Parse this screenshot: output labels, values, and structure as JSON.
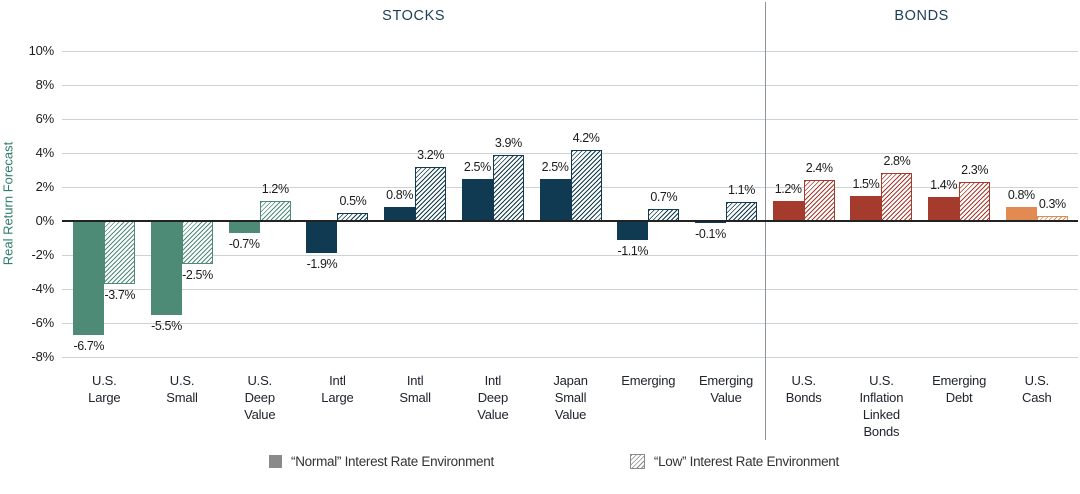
{
  "chart_data": {
    "type": "bar",
    "ylabel": "Real Return Forecast",
    "ylim": [
      -8,
      10
    ],
    "ytick_step": 2,
    "grid": true,
    "legend_position": "bottom",
    "sections": [
      {
        "label": "STOCKS",
        "from": 0,
        "to": 8
      },
      {
        "label": "BONDS",
        "from": 9,
        "to": 12
      }
    ],
    "series": [
      {
        "name": "“Normal” Interest Rate Environment",
        "key": "normal",
        "style": "solid"
      },
      {
        "name": "“Low” Interest Rate Environment",
        "key": "low",
        "style": "hatched"
      }
    ],
    "categories": [
      {
        "label": [
          "U.S.",
          "Large"
        ],
        "normal": -6.7,
        "low": -3.7,
        "color": "green"
      },
      {
        "label": [
          "U.S.",
          "Small"
        ],
        "normal": -5.5,
        "low": -2.5,
        "color": "green"
      },
      {
        "label": [
          "U.S.",
          "Deep",
          "Value"
        ],
        "normal": -0.7,
        "low": 1.2,
        "color": "green"
      },
      {
        "label": [
          "Intl",
          "Large"
        ],
        "normal": -1.9,
        "low": 0.5,
        "color": "navy"
      },
      {
        "label": [
          "Intl",
          "Small"
        ],
        "normal": 0.8,
        "low": 3.2,
        "color": "navy"
      },
      {
        "label": [
          "Intl",
          "Deep",
          "Value"
        ],
        "normal": 2.5,
        "low": 3.9,
        "color": "navy"
      },
      {
        "label": [
          "Japan",
          "Small",
          "Value"
        ],
        "normal": 2.5,
        "low": 4.2,
        "color": "navy"
      },
      {
        "label": [
          "Emerging"
        ],
        "normal": -1.1,
        "low": 0.7,
        "color": "navy"
      },
      {
        "label": [
          "Emerging",
          "Value"
        ],
        "normal": -0.1,
        "low": 1.1,
        "color": "navy"
      },
      {
        "label": [
          "U.S.",
          "Bonds"
        ],
        "normal": 1.2,
        "low": 2.4,
        "color": "red"
      },
      {
        "label": [
          "U.S.",
          "Inflation",
          "Linked",
          "Bonds"
        ],
        "normal": 1.5,
        "low": 2.8,
        "color": "red"
      },
      {
        "label": [
          "Emerging",
          "Debt"
        ],
        "normal": 1.4,
        "low": 2.3,
        "color": "red"
      },
      {
        "label": [
          "U.S.",
          "Cash"
        ],
        "normal": 0.8,
        "low": 0.3,
        "color": "orange"
      }
    ],
    "colors": {
      "green": "#4D8B77",
      "navy": "#0F3A52",
      "red": "#A53B2D",
      "orange": "#E18B52",
      "legend_gray": "#8a8a8a",
      "grid": "#ccd2d6",
      "zero_axis": "#222222",
      "section_title": "#1c4157",
      "ylabel": "#2e7c6c"
    }
  }
}
